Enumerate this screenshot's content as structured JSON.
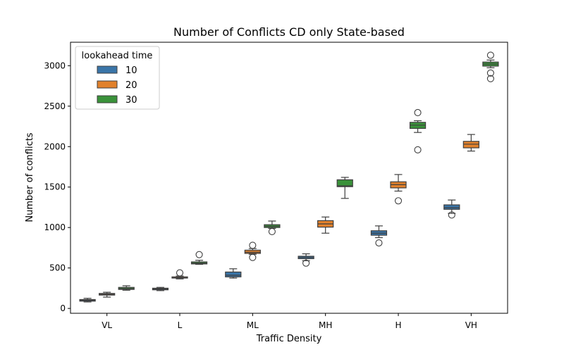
{
  "chart_data": {
    "type": "box",
    "title": "Number of Conflicts CD only State-based",
    "xlabel": "Traffic Density",
    "ylabel": "Number of conflicts",
    "categories": [
      "VL",
      "L",
      "ML",
      "MH",
      "H",
      "VH"
    ],
    "ylim": [
      -60,
      3290
    ],
    "yticks": [
      0,
      500,
      1000,
      1500,
      2000,
      2500,
      3000
    ],
    "legend": {
      "title": "lookahead time",
      "position": "upper-left"
    },
    "series": [
      {
        "name": "10",
        "color": "#3a75a8",
        "boxes": [
          {
            "whisker_low": 80,
            "q1": 90,
            "median": 100,
            "q3": 110,
            "whisker_high": 125,
            "outliers": []
          },
          {
            "whisker_low": 220,
            "q1": 230,
            "median": 240,
            "q3": 250,
            "whisker_high": 260,
            "outliers": []
          },
          {
            "whisker_low": 375,
            "q1": 390,
            "median": 410,
            "q3": 450,
            "whisker_high": 490,
            "outliers": []
          },
          {
            "whisker_low": 590,
            "q1": 615,
            "median": 630,
            "q3": 645,
            "whisker_high": 675,
            "outliers": [
              560
            ]
          },
          {
            "whisker_low": 875,
            "q1": 905,
            "median": 930,
            "q3": 960,
            "whisker_high": 1020,
            "outliers": [
              810
            ]
          },
          {
            "whisker_low": 1175,
            "q1": 1225,
            "median": 1245,
            "q3": 1280,
            "whisker_high": 1340,
            "outliers": [
              1155
            ]
          }
        ]
      },
      {
        "name": "20",
        "color": "#e1812c",
        "boxes": [
          {
            "whisker_low": 140,
            "q1": 165,
            "median": 175,
            "q3": 185,
            "whisker_high": 200,
            "outliers": []
          },
          {
            "whisker_low": 365,
            "q1": 375,
            "median": 380,
            "q3": 390,
            "whisker_high": 400,
            "outliers": [
              440
            ]
          },
          {
            "whisker_low": 670,
            "q1": 680,
            "median": 695,
            "q3": 720,
            "whisker_high": 740,
            "outliers": [
              780,
              630
            ]
          },
          {
            "whisker_low": 930,
            "q1": 1005,
            "median": 1045,
            "q3": 1085,
            "whisker_high": 1130,
            "outliers": []
          },
          {
            "whisker_low": 1450,
            "q1": 1490,
            "median": 1530,
            "q3": 1565,
            "whisker_high": 1655,
            "outliers": [
              1330
            ]
          },
          {
            "whisker_low": 1945,
            "q1": 1985,
            "median": 2030,
            "q3": 2065,
            "whisker_high": 2150,
            "outliers": []
          }
        ]
      },
      {
        "name": "30",
        "color": "#3a923a",
        "boxes": [
          {
            "whisker_low": 225,
            "q1": 235,
            "median": 245,
            "q3": 260,
            "whisker_high": 280,
            "outliers": []
          },
          {
            "whisker_low": 545,
            "q1": 550,
            "median": 560,
            "q3": 575,
            "whisker_high": 595,
            "outliers": [
              665
            ]
          },
          {
            "whisker_low": 990,
            "q1": 1000,
            "median": 1015,
            "q3": 1035,
            "whisker_high": 1080,
            "outliers": [
              950
            ]
          },
          {
            "whisker_low": 1360,
            "q1": 1505,
            "median": 1515,
            "q3": 1590,
            "whisker_high": 1620,
            "outliers": []
          },
          {
            "whisker_low": 2175,
            "q1": 2225,
            "median": 2265,
            "q3": 2300,
            "whisker_high": 2320,
            "outliers": [
              2420,
              1960
            ]
          },
          {
            "whisker_low": 2975,
            "q1": 2995,
            "median": 3020,
            "q3": 3045,
            "whisker_high": 3070,
            "outliers": [
              3130,
              2910,
              2840
            ]
          }
        ]
      }
    ]
  }
}
